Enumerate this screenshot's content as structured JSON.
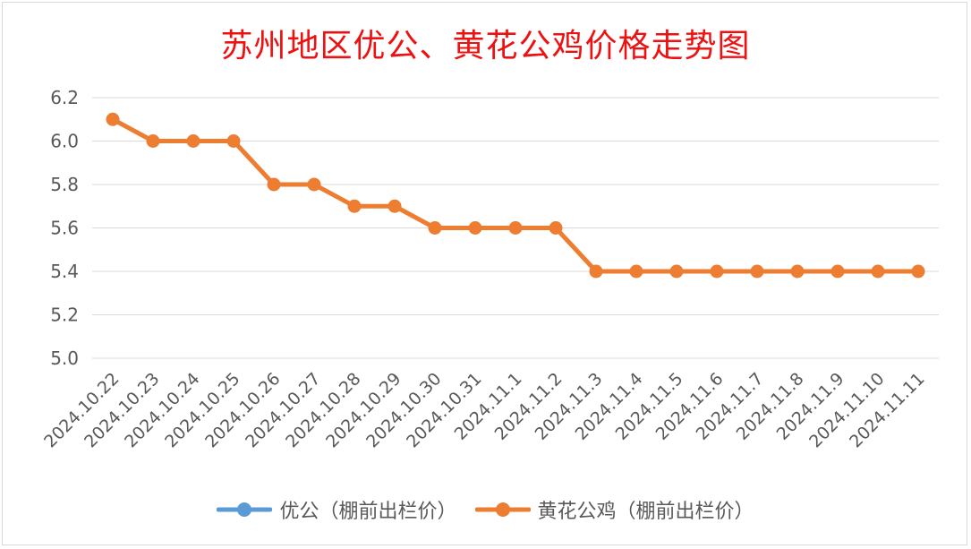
{
  "chart_data": {
    "type": "line",
    "title": "苏州地区优公、黄花公鸡价格走势图",
    "categories": [
      "2024.10.22",
      "2024.10.23",
      "2024.10.24",
      "2024.10.25",
      "2024.10.26",
      "2024.10.27",
      "2024.10.28",
      "2024.10.29",
      "2024.10.30",
      "2024.10.31",
      "2024.11.1",
      "2024.11.2",
      "2024.11.3",
      "2024.11.4",
      "2024.11.5",
      "2024.11.6",
      "2024.11.7",
      "2024.11.8",
      "2024.11.9",
      "2024.11.10",
      "2024.11.11"
    ],
    "series": [
      {
        "name": "优公（棚前出栏价）",
        "color": "#5b9bd5",
        "values": [
          null,
          null,
          null,
          null,
          null,
          null,
          null,
          null,
          null,
          null,
          null,
          null,
          null,
          null,
          null,
          null,
          null,
          null,
          null,
          null,
          null
        ]
      },
      {
        "name": "黄花公鸡（棚前出栏价）",
        "color": "#ed7d31",
        "values": [
          6.1,
          6.0,
          6.0,
          6.0,
          5.8,
          5.8,
          5.7,
          5.7,
          5.6,
          5.6,
          5.6,
          5.6,
          5.4,
          5.4,
          5.4,
          5.4,
          5.4,
          5.4,
          5.4,
          5.4,
          5.4
        ]
      }
    ],
    "yticks": [
      "5.0",
      "5.2",
      "5.4",
      "5.6",
      "5.8",
      "6.0",
      "6.2"
    ],
    "ylim": [
      5.0,
      6.2
    ],
    "grid": true,
    "legend": "bottom",
    "title_color": "#ee1111"
  }
}
